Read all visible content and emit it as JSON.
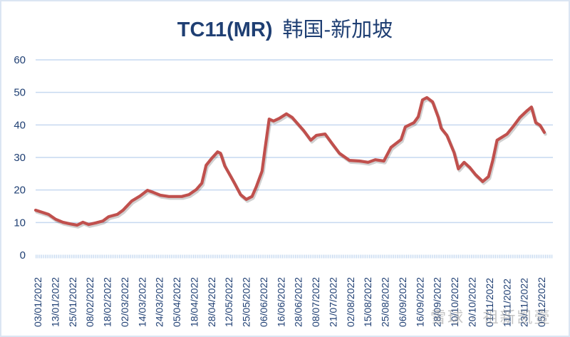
{
  "chart_data": {
    "type": "line",
    "title": "TC11(MR)  韩国-新加坡",
    "title_parts": {
      "code": "TC11(MR)",
      "route": "韩国-新加坡"
    },
    "xlabel": "",
    "ylabel": "",
    "ylim": [
      0,
      60
    ],
    "yticks": [
      0,
      10,
      20,
      30,
      40,
      50,
      60
    ],
    "grid": true,
    "legend": null,
    "line_color": "#c0504d",
    "grid_color": "#c6d9f0",
    "x_tick_labels": [
      "03/01/2022",
      "13/01/2022",
      "25/01/2022",
      "08/02/2022",
      "18/02/2022",
      "02/03/2022",
      "14/03/2022",
      "24/03/2022",
      "05/04/2022",
      "18/04/2022",
      "28/04/2022",
      "12/05/2022",
      "25/05/2022",
      "06/06/2022",
      "16/06/2022",
      "28/06/2022",
      "08/07/2022",
      "21/07/2022",
      "02/08/2022",
      "15/08/2022",
      "25/08/2022",
      "06/09/2022",
      "16/09/2022",
      "28/09/2022",
      "10/10/2022",
      "20/10/2022",
      "01/11/2022",
      "11/11/2022",
      "23/11/2022",
      "05/12/2022"
    ],
    "series": [
      {
        "name": "TC11(MR)",
        "points": [
          [
            "03/01/2022",
            13.8
          ],
          [
            "08/01/2022",
            13.1
          ],
          [
            "12/01/2022",
            12.5
          ],
          [
            "17/01/2022",
            11.0
          ],
          [
            "22/01/2022",
            10.1
          ],
          [
            "27/01/2022",
            9.6
          ],
          [
            "01/02/2022",
            9.2
          ],
          [
            "05/02/2022",
            10.1
          ],
          [
            "09/02/2022",
            9.4
          ],
          [
            "14/02/2022",
            9.9
          ],
          [
            "19/02/2022",
            10.5
          ],
          [
            "23/02/2022",
            11.8
          ],
          [
            "01/03/2022",
            12.5
          ],
          [
            "05/03/2022",
            13.8
          ],
          [
            "11/03/2022",
            16.6
          ],
          [
            "17/03/2022",
            18.2
          ],
          [
            "22/03/2022",
            19.9
          ],
          [
            "26/03/2022",
            19.3
          ],
          [
            "31/03/2022",
            18.4
          ],
          [
            "06/04/2022",
            18.0
          ],
          [
            "15/04/2022",
            18.0
          ],
          [
            "20/04/2022",
            18.6
          ],
          [
            "25/04/2022",
            20.1
          ],
          [
            "29/04/2022",
            22.1
          ],
          [
            "02/05/2022",
            27.6
          ],
          [
            "06/05/2022",
            29.8
          ],
          [
            "10/05/2022",
            31.7
          ],
          [
            "12/05/2022",
            31.3
          ],
          [
            "15/05/2022",
            27.4
          ],
          [
            "19/05/2022",
            24.3
          ],
          [
            "22/05/2022",
            21.9
          ],
          [
            "26/05/2022",
            18.6
          ],
          [
            "30/05/2022",
            17.1
          ],
          [
            "03/06/2022",
            18.0
          ],
          [
            "06/06/2022",
            21.0
          ],
          [
            "10/06/2022",
            25.8
          ],
          [
            "12/06/2022",
            32.4
          ],
          [
            "15/06/2022",
            41.8
          ],
          [
            "18/06/2022",
            41.2
          ],
          [
            "22/06/2022",
            42.0
          ],
          [
            "27/06/2022",
            43.4
          ],
          [
            "01/07/2022",
            42.3
          ],
          [
            "05/07/2022",
            40.3
          ],
          [
            "09/07/2022",
            38.3
          ],
          [
            "14/07/2022",
            35.3
          ],
          [
            "18/07/2022",
            36.8
          ],
          [
            "24/07/2022",
            37.2
          ],
          [
            "29/07/2022",
            34.2
          ],
          [
            "03/08/2022",
            31.3
          ],
          [
            "10/08/2022",
            29.1
          ],
          [
            "17/08/2022",
            28.9
          ],
          [
            "23/08/2022",
            28.5
          ],
          [
            "28/08/2022",
            29.3
          ],
          [
            "03/09/2022",
            28.9
          ],
          [
            "08/09/2022",
            33.1
          ],
          [
            "15/09/2022",
            35.5
          ],
          [
            "18/09/2022",
            39.4
          ],
          [
            "24/09/2022",
            40.7
          ],
          [
            "27/09/2022",
            42.5
          ],
          [
            "30/09/2022",
            47.7
          ],
          [
            "03/10/2022",
            48.4
          ],
          [
            "07/10/2022",
            47.1
          ],
          [
            "11/10/2022",
            42.3
          ],
          [
            "13/10/2022",
            39.0
          ],
          [
            "17/10/2022",
            36.8
          ],
          [
            "22/10/2022",
            31.5
          ],
          [
            "25/10/2022",
            26.5
          ],
          [
            "29/10/2022",
            28.5
          ],
          [
            "02/11/2022",
            26.9
          ],
          [
            "06/11/2022",
            24.7
          ],
          [
            "11/11/2022",
            22.6
          ],
          [
            "15/11/2022",
            24.1
          ],
          [
            "18/11/2022",
            29.1
          ],
          [
            "21/11/2022",
            35.3
          ],
          [
            "24/11/2022",
            36.1
          ],
          [
            "28/11/2022",
            37.2
          ],
          [
            "02/12/2022",
            39.4
          ],
          [
            "07/12/2022",
            42.3
          ],
          [
            "12/12/2022",
            44.4
          ],
          [
            "15/12/2022",
            45.5
          ],
          [
            "18/12/2022",
            40.7
          ],
          [
            "21/12/2022",
            39.9
          ],
          [
            "24/12/2022",
            37.7
          ]
        ]
      }
    ],
    "watermark": "雪球 · 祖新凯壹"
  }
}
